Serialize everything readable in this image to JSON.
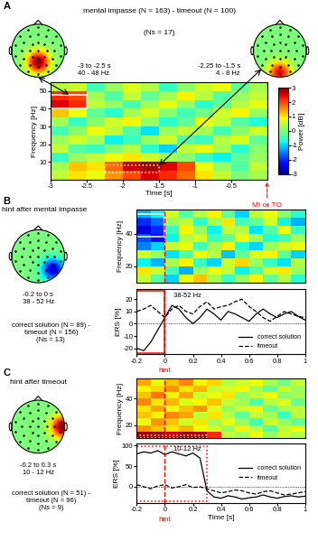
{
  "chart_data": [
    {
      "type": "heatmap",
      "panel": "A",
      "title": "mental impasse (N = 163) - timeout (N = 100)",
      "subtitle": "(Ns = 17)",
      "x_edges": [
        -3,
        -2.75,
        -2.5,
        -2.25,
        -2,
        -1.75,
        -1.5,
        -1.25,
        -1,
        -0.75,
        -0.5,
        -0.25,
        0
      ],
      "y_edges": [
        0,
        5,
        10,
        15,
        20,
        25,
        30,
        35,
        40,
        45,
        50,
        55
      ],
      "cells": [
        [
          0.5,
          1,
          0.8,
          1.5,
          2,
          2.5,
          2.2,
          1.8,
          1,
          0.5,
          0,
          0.3
        ],
        [
          0.3,
          1.2,
          1.0,
          1.8,
          2.6,
          2.8,
          2.5,
          2.0,
          0.8,
          0.2,
          -0.3,
          0.5
        ],
        [
          -0.5,
          0.2,
          0.5,
          0.8,
          1.0,
          0.6,
          0.3,
          0.1,
          -0.5,
          -0.8,
          -0.2,
          0.2
        ],
        [
          0.5,
          -0.3,
          -0.5,
          0,
          0.4,
          -0.6,
          -1,
          0.5,
          0.8,
          0.3,
          -0.6,
          0.1
        ],
        [
          0.2,
          0.6,
          0.3,
          -0.8,
          -0.5,
          0.2,
          0.6,
          -0.3,
          -0.5,
          0.4,
          0.7,
          -0.2
        ],
        [
          -0.4,
          0.1,
          0.8,
          0.5,
          -0.3,
          -0.9,
          0.2,
          0.5,
          0.3,
          -0.4,
          0.1,
          0.6
        ],
        [
          0.3,
          -0.5,
          0.1,
          0.6,
          0.9,
          0.2,
          -0.6,
          -0.2,
          0.8,
          0.5,
          -0.3,
          -0.7
        ],
        [
          1.2,
          0.8,
          -0.2,
          -0.6,
          0.3,
          0.7,
          0.1,
          -0.4,
          -0.1,
          0.6,
          0.9,
          0.2
        ],
        [
          2.5,
          2.2,
          0.5,
          0.2,
          -0.4,
          0.3,
          0.8,
          0.2,
          -0.6,
          -0.2,
          0.4,
          0.8
        ],
        [
          2.2,
          2.0,
          0.3,
          -0.3,
          0.5,
          -0.2,
          0.3,
          0.9,
          0.4,
          -0.3,
          0.2,
          0.5
        ],
        [
          0.4,
          0.6,
          -0.4,
          0.2,
          0.7,
          0.4,
          -0.5,
          0.1,
          0.6,
          0.8,
          -0.2,
          0.3
        ]
      ],
      "xlim": [
        -3,
        0
      ],
      "ylim": [
        0,
        55
      ],
      "xticks": [
        -3,
        -2.5,
        -2,
        -1.5,
        -1,
        -0.5
      ],
      "yticks": [
        10,
        20,
        30,
        40,
        50
      ],
      "x_label": "Time [s]",
      "y_label": "Frequency [Hz]",
      "colorbar": {
        "label": "Power [dB]",
        "range": [
          -3,
          3
        ],
        "ticks": [
          -3,
          -2,
          -1,
          0,
          1,
          2,
          3
        ]
      },
      "boxes": [
        {
          "x": [
            -3,
            -2.5
          ],
          "y": [
            40,
            48
          ],
          "line_style": "solid",
          "color": "white"
        },
        {
          "x": [
            -2.25,
            -1.5
          ],
          "y": [
            4,
            8
          ],
          "line_style": "dotted",
          "color": "white"
        }
      ],
      "event": {
        "x": 0,
        "label": "MI or TO",
        "color": "red"
      }
    },
    {
      "type": "topomap",
      "panel": "A",
      "peak": [
        0,
        -0.45
      ],
      "value": 3,
      "time_window": "-3 to -2.5 s",
      "freq_window": "40 - 48 Hz"
    },
    {
      "type": "topomap",
      "panel": "A",
      "peak": [
        0,
        -0.85
      ],
      "value": 2.5,
      "time_window": "-2.25 to -1.5 s",
      "freq_window": "4 - 8 Hz"
    },
    {
      "type": "topomap",
      "panel": "B",
      "title": "hint after mental impasse",
      "peak": [
        0.55,
        -0.5
      ],
      "value": -2.5,
      "time_window": "-0.2 to 0 s",
      "freq_window": "38 - 52 Hz",
      "comparison": [
        "correct solution (N = 89) -",
        "timeout (N = 156)"
      ],
      "subtitle": "(Ns = 13)"
    },
    {
      "type": "heatmap",
      "panel": "B",
      "x_edges": [
        -0.2,
        -0.1,
        0,
        0.1,
        0.2,
        0.3,
        0.4,
        0.5,
        0.6,
        0.7,
        0.8,
        0.9,
        1
      ],
      "y_edges": [
        10,
        15,
        20,
        25,
        30,
        35,
        40,
        45,
        50,
        55
      ],
      "cells": [
        [
          0.5,
          -0.3,
          -1.0,
          0.8,
          1.2,
          0.3,
          -0.5,
          0.2,
          0.9,
          -0.2,
          0.4,
          -0.6
        ],
        [
          1.0,
          0.6,
          -0.4,
          -1.2,
          0.2,
          0.8,
          0.5,
          -0.8,
          -0.3,
          0.7,
          1.0,
          0.2
        ],
        [
          -0.8,
          -1.2,
          0.3,
          0.9,
          -0.5,
          -1.0,
          0.6,
          1.1,
          0.2,
          -0.5,
          -0.9,
          0.4
        ],
        [
          0.6,
          0.2,
          -0.9,
          -0.3,
          0.8,
          0.4,
          -1.1,
          -0.2,
          0.7,
          0.9,
          -0.2,
          -1.0
        ],
        [
          -1.5,
          -1.0,
          0.5,
          0.8,
          -0.4,
          0.3,
          0.9,
          -0.6,
          -1.0,
          0.2,
          0.6,
          0.8
        ],
        [
          -1.8,
          -2.2,
          -0.8,
          0.4,
          0.7,
          -0.5,
          -0.2,
          0.8,
          0.3,
          -0.7,
          -0.4,
          0.3
        ],
        [
          -2.5,
          -2.0,
          -0.5,
          0.9,
          0.2,
          -0.8,
          0.5,
          0.4,
          -0.9,
          -0.3,
          0.8,
          -0.5
        ],
        [
          -2.0,
          -1.6,
          0.2,
          0.5,
          -0.6,
          0.3,
          1.0,
          -0.4,
          -0.2,
          0.6,
          -0.8,
          -1.2
        ],
        [
          -1.2,
          -0.8,
          0.6,
          -0.3,
          0.4,
          0.9,
          -0.2,
          -1.0,
          0.5,
          0.8,
          0.1,
          -0.6
        ]
      ],
      "xlim": [
        -0.2,
        1
      ],
      "ylim": [
        10,
        55
      ],
      "yticks": [
        20,
        40
      ],
      "tick_labels": "y",
      "y_label": "Frequency [Hz]",
      "boxes": [
        {
          "x": [
            -0.2,
            0
          ],
          "y": [
            38,
            52
          ],
          "line_style": "solid",
          "color": "white"
        }
      ],
      "event": {
        "x": 0,
        "color": "red"
      }
    },
    {
      "type": "line",
      "panel": "B",
      "annotation": "38-52 Hz",
      "x": [
        -0.2,
        -0.15,
        -0.1,
        -0.05,
        0,
        0.05,
        0.1,
        0.15,
        0.2,
        0.25,
        0.3,
        0.35,
        0.4,
        0.45,
        0.5,
        0.55,
        0.6,
        0.65,
        0.7,
        0.75,
        0.8,
        0.85,
        0.9,
        0.95,
        1
      ],
      "series": [
        {
          "name": "correct solution",
          "color": "black",
          "line_style": "solid",
          "values": [
            -20,
            -22,
            -15,
            -5,
            5,
            15,
            12,
            5,
            0,
            5,
            12,
            8,
            3,
            10,
            8,
            5,
            2,
            8,
            12,
            8,
            5,
            8,
            10,
            6,
            3
          ]
        },
        {
          "name": "timeout",
          "color": "black",
          "line_style": "dashed",
          "values": [
            10,
            12,
            15,
            10,
            5,
            12,
            15,
            10,
            8,
            14,
            18,
            12,
            14,
            15,
            18,
            20,
            14,
            10,
            5,
            2,
            6,
            10,
            8,
            6,
            5
          ]
        }
      ],
      "xlim": [
        -0.2,
        1
      ],
      "ylim": [
        -25,
        28
      ],
      "xticks": [
        -0.2,
        0,
        0.2,
        0.4,
        0.6,
        0.8,
        1
      ],
      "yticks": [
        -20,
        -10,
        0,
        10,
        20
      ],
      "y_label": "ERS [%]",
      "legend": "lower right",
      "boxes": [
        {
          "x": [
            -0.2,
            0
          ],
          "y": [
            -24,
            27
          ],
          "line_style": "solid",
          "color": "red"
        }
      ],
      "event": {
        "x": 0,
        "label": "hint",
        "color": "red"
      }
    },
    {
      "type": "topomap",
      "panel": "C",
      "title": "hint after timeout",
      "peak": [
        0.9,
        0
      ],
      "value": 3,
      "time_window": "-0.2 to 0.3 s",
      "freq_window": "10 - 12 Hz",
      "comparison": [
        "correct solution (N = 51) -",
        "timeout (N = 96)"
      ],
      "subtitle": "(Ns = 9)"
    },
    {
      "type": "heatmap",
      "panel": "C",
      "x_edges": [
        -0.2,
        -0.1,
        0,
        0.1,
        0.2,
        0.3,
        0.4,
        0.5,
        0.6,
        0.7,
        0.8,
        0.9,
        1
      ],
      "y_edges": [
        10,
        15,
        20,
        25,
        30,
        35,
        40,
        45,
        50,
        55
      ],
      "cells": [
        [
          2.8,
          2.8,
          2.6,
          2.8,
          2.7,
          2.2,
          0.5,
          0.3,
          0.8,
          0.2,
          0.6,
          0.4
        ],
        [
          1.5,
          1.2,
          1.0,
          1.3,
          0.8,
          0.6,
          0.2,
          0.9,
          0.4,
          -0.3,
          0.5,
          0.8
        ],
        [
          0.8,
          1.5,
          1.2,
          0.6,
          1.0,
          0.3,
          0.8,
          0.2,
          -0.4,
          0.6,
          0.2,
          -0.2
        ],
        [
          1.2,
          0.9,
          1.6,
          1.4,
          0.5,
          1.0,
          0.4,
          -0.2,
          0.5,
          0.3,
          -0.5,
          0.4
        ],
        [
          1.0,
          1.4,
          0.8,
          1.2,
          1.5,
          0.7,
          0.2,
          0.6,
          0.9,
          -0.2,
          0.3,
          0.5
        ],
        [
          1.6,
          1.0,
          1.3,
          0.7,
          0.9,
          1.2,
          0.5,
          0.3,
          -0.3,
          0.4,
          0.7,
          -0.1
        ],
        [
          1.2,
          1.7,
          0.9,
          1.4,
          0.6,
          0.8,
          1.0,
          0.2,
          0.5,
          0.8,
          0.1,
          0.3
        ],
        [
          0.9,
          1.1,
          1.5,
          1.0,
          1.3,
          0.5,
          0.7,
          0.9,
          0.3,
          -0.2,
          0.6,
          0.2
        ],
        [
          1.4,
          0.8,
          1.2,
          1.6,
          0.9,
          1.1,
          0.4,
          0.6,
          0.8,
          0.3,
          -0.1,
          0.5
        ]
      ],
      "xlim": [
        -0.2,
        1
      ],
      "ylim": [
        10,
        55
      ],
      "yticks": [
        20,
        40
      ],
      "tick_labels": "y",
      "y_label": "Frequency [Hz]",
      "boxes": [
        {
          "x": [
            -0.2,
            0.3
          ],
          "y": [
            10,
            12
          ],
          "line_style": "dotted",
          "color": "white"
        }
      ],
      "event": {
        "x": 0,
        "color": "red"
      }
    },
    {
      "type": "line",
      "panel": "C",
      "annotation": "10-12 Hz",
      "x": [
        -0.2,
        -0.15,
        -0.1,
        -0.05,
        0,
        0.05,
        0.1,
        0.15,
        0.2,
        0.25,
        0.3,
        0.35,
        0.4,
        0.45,
        0.5,
        0.55,
        0.6,
        0.65,
        0.7,
        0.75,
        0.8,
        0.85,
        0.9,
        0.95,
        1
      ],
      "series": [
        {
          "name": "correct solution",
          "color": "black",
          "line_style": "solid",
          "values": [
            80,
            85,
            82,
            88,
            78,
            85,
            80,
            75,
            82,
            70,
            -10,
            -25,
            -28,
            -22,
            -25,
            -30,
            -27,
            -25,
            -20,
            -25,
            -28,
            -24,
            -22,
            -25,
            -23
          ]
        },
        {
          "name": "timeout",
          "color": "black",
          "line_style": "dashed",
          "values": [
            5,
            0,
            -5,
            2,
            5,
            -3,
            0,
            5,
            -2,
            0,
            -5,
            -10,
            -15,
            -12,
            -8,
            -10,
            -15,
            -18,
            -12,
            -10,
            -15,
            -20,
            -18,
            -15,
            -12
          ]
        }
      ],
      "xlim": [
        -0.2,
        1
      ],
      "ylim": [
        -40,
        105
      ],
      "xticks": [
        -0.2,
        0,
        0.2,
        0.4,
        0.6,
        0.8,
        1
      ],
      "yticks": [
        0,
        50,
        100
      ],
      "x_label": "Time [s]",
      "y_label": "ERS [%]",
      "legend": "center right",
      "boxes": [
        {
          "x": [
            -0.2,
            0.3
          ],
          "y": [
            -35,
            98
          ],
          "line_style": "dotted",
          "color": "red"
        }
      ],
      "event": {
        "x": 0,
        "label": "hint",
        "color": "red"
      }
    }
  ]
}
